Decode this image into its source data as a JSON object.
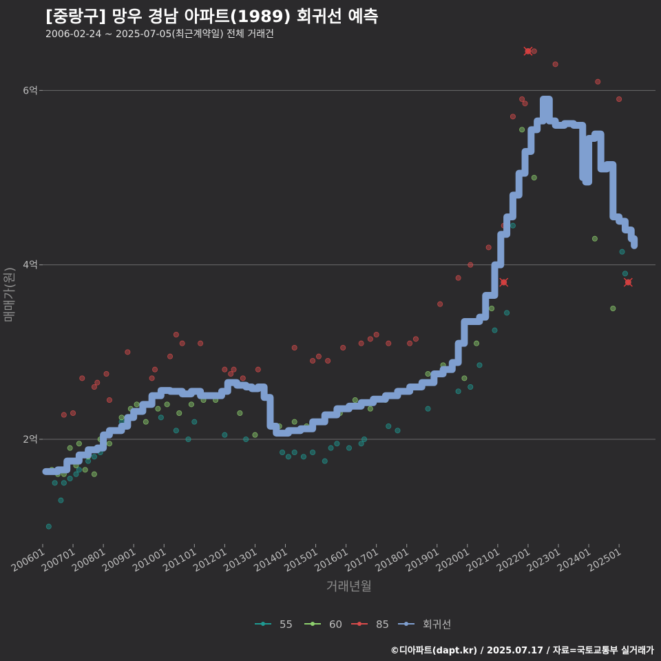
{
  "header": {
    "title": "[중랑구] 망우 경남 아파트(1989) 회귀선 예측",
    "subtitle": "2006-02-24 ~ 2025-07-05(최근계약일) 전체 거래건"
  },
  "footer": {
    "credit": "©디아파트(dapt.kr) / 2025.07.17 / 자료=국토교통부 실거래가"
  },
  "colors": {
    "s55": "#1f9a92",
    "s60": "#8ed16e",
    "s85": "#d94b4b",
    "regression": "#7f9fd0",
    "grid": "#6b6b6b",
    "background": "#2b2a2c"
  },
  "chart_data": {
    "type": "scatter",
    "title": "[중랑구] 망우 경남 아파트(1989) 회귀선 예측",
    "xlabel": "거래년월",
    "ylabel": "매매가(원)",
    "xlim": [
      2006.0,
      2026.2
    ],
    "ylim": [
      0.8,
      6.5
    ],
    "y_unit": "억",
    "x_ticks": [
      {
        "value": 2006,
        "label": "200601"
      },
      {
        "value": 2007,
        "label": "200701"
      },
      {
        "value": 2008,
        "label": "200801"
      },
      {
        "value": 2009,
        "label": "200901"
      },
      {
        "value": 2010,
        "label": "201001"
      },
      {
        "value": 2011,
        "label": "201101"
      },
      {
        "value": 2012,
        "label": "201201"
      },
      {
        "value": 2013,
        "label": "201301"
      },
      {
        "value": 2014,
        "label": "201401"
      },
      {
        "value": 2015,
        "label": "201501"
      },
      {
        "value": 2016,
        "label": "201601"
      },
      {
        "value": 2017,
        "label": "201701"
      },
      {
        "value": 2018,
        "label": "201801"
      },
      {
        "value": 2019,
        "label": "201901"
      },
      {
        "value": 2020,
        "label": "202001"
      },
      {
        "value": 2021,
        "label": "202101"
      },
      {
        "value": 2022,
        "label": "202201"
      },
      {
        "value": 2023,
        "label": "202301"
      },
      {
        "value": 2024,
        "label": "202401"
      },
      {
        "value": 2025,
        "label": "202501"
      }
    ],
    "y_ticks": [
      {
        "value": 2,
        "label": "2억"
      },
      {
        "value": 4,
        "label": "4억"
      },
      {
        "value": 6,
        "label": "6억"
      }
    ],
    "legend": [
      "55",
      "60",
      "85",
      "회귀선"
    ],
    "series": [
      {
        "name": "55",
        "points": [
          [
            2006.2,
            1.0
          ],
          [
            2006.4,
            1.5
          ],
          [
            2006.6,
            1.3
          ],
          [
            2006.7,
            1.5
          ],
          [
            2006.9,
            1.55
          ],
          [
            2007.1,
            1.6
          ],
          [
            2007.2,
            1.65
          ],
          [
            2007.5,
            1.75
          ],
          [
            2007.7,
            1.8
          ],
          [
            2007.9,
            1.85
          ],
          [
            2008.6,
            2.2
          ],
          [
            2009.9,
            2.25
          ],
          [
            2010.4,
            2.1
          ],
          [
            2010.8,
            2.0
          ],
          [
            2011.0,
            2.2
          ],
          [
            2012.0,
            2.05
          ],
          [
            2012.7,
            2.0
          ],
          [
            2013.9,
            1.85
          ],
          [
            2014.1,
            1.8
          ],
          [
            2014.3,
            1.85
          ],
          [
            2014.6,
            1.8
          ],
          [
            2014.9,
            1.85
          ],
          [
            2015.3,
            1.75
          ],
          [
            2015.5,
            1.9
          ],
          [
            2015.7,
            1.95
          ],
          [
            2016.1,
            1.9
          ],
          [
            2016.5,
            1.95
          ],
          [
            2016.6,
            2.0
          ],
          [
            2017.4,
            2.15
          ],
          [
            2017.7,
            2.1
          ],
          [
            2018.7,
            2.35
          ],
          [
            2019.7,
            2.55
          ],
          [
            2020.1,
            2.6
          ],
          [
            2020.4,
            2.85
          ],
          [
            2020.9,
            3.25
          ],
          [
            2021.3,
            3.45
          ],
          [
            2021.5,
            4.45
          ],
          [
            2025.1,
            4.15
          ],
          [
            2025.2,
            3.9
          ]
        ]
      },
      {
        "name": "60",
        "points": [
          [
            2006.3,
            1.65
          ],
          [
            2006.5,
            1.6
          ],
          [
            2006.7,
            1.6
          ],
          [
            2006.9,
            1.9
          ],
          [
            2007.1,
            1.7
          ],
          [
            2007.2,
            1.95
          ],
          [
            2007.4,
            1.65
          ],
          [
            2007.5,
            1.8
          ],
          [
            2007.7,
            1.6
          ],
          [
            2007.9,
            2.0
          ],
          [
            2008.2,
            1.95
          ],
          [
            2008.6,
            2.25
          ],
          [
            2008.9,
            2.35
          ],
          [
            2009.1,
            2.4
          ],
          [
            2009.4,
            2.2
          ],
          [
            2009.6,
            2.4
          ],
          [
            2009.8,
            2.35
          ],
          [
            2010.1,
            2.4
          ],
          [
            2010.5,
            2.3
          ],
          [
            2010.9,
            2.4
          ],
          [
            2011.3,
            2.45
          ],
          [
            2011.7,
            2.45
          ],
          [
            2012.5,
            2.3
          ],
          [
            2013.0,
            2.05
          ],
          [
            2013.8,
            2.15
          ],
          [
            2014.3,
            2.2
          ],
          [
            2014.7,
            2.15
          ],
          [
            2015.3,
            2.2
          ],
          [
            2015.8,
            2.3
          ],
          [
            2016.3,
            2.45
          ],
          [
            2016.8,
            2.35
          ],
          [
            2017.3,
            2.45
          ],
          [
            2017.8,
            2.55
          ],
          [
            2018.2,
            2.6
          ],
          [
            2018.7,
            2.75
          ],
          [
            2019.2,
            2.85
          ],
          [
            2019.9,
            2.7
          ],
          [
            2020.3,
            3.1
          ],
          [
            2020.8,
            3.5
          ],
          [
            2021.1,
            4.15
          ],
          [
            2021.8,
            5.55
          ],
          [
            2022.2,
            5.0
          ],
          [
            2024.2,
            4.3
          ],
          [
            2024.8,
            3.5
          ]
        ]
      },
      {
        "name": "85",
        "points": [
          [
            2006.7,
            2.28
          ],
          [
            2007.0,
            2.3
          ],
          [
            2007.3,
            2.7
          ],
          [
            2007.7,
            2.6
          ],
          [
            2007.8,
            2.65
          ],
          [
            2008.1,
            2.75
          ],
          [
            2008.2,
            2.45
          ],
          [
            2008.8,
            3.0
          ],
          [
            2009.6,
            2.7
          ],
          [
            2009.7,
            2.8
          ],
          [
            2010.2,
            2.95
          ],
          [
            2010.4,
            3.2
          ],
          [
            2010.6,
            3.1
          ],
          [
            2011.2,
            3.1
          ],
          [
            2012.0,
            2.8
          ],
          [
            2012.2,
            2.75
          ],
          [
            2012.3,
            2.8
          ],
          [
            2012.6,
            2.7
          ],
          [
            2013.1,
            2.8
          ],
          [
            2014.3,
            3.05
          ],
          [
            2014.9,
            2.9
          ],
          [
            2015.1,
            2.95
          ],
          [
            2015.4,
            2.9
          ],
          [
            2015.9,
            3.05
          ],
          [
            2016.5,
            3.1
          ],
          [
            2016.8,
            3.15
          ],
          [
            2017.0,
            3.2
          ],
          [
            2017.4,
            3.1
          ],
          [
            2018.1,
            3.1
          ],
          [
            2018.3,
            3.15
          ],
          [
            2019.1,
            3.55
          ],
          [
            2019.7,
            3.85
          ],
          [
            2020.1,
            4.0
          ],
          [
            2020.7,
            4.2
          ],
          [
            2021.2,
            4.45
          ],
          [
            2021.5,
            5.7
          ],
          [
            2021.8,
            5.9
          ],
          [
            2021.9,
            5.85
          ],
          [
            2022.2,
            6.45
          ],
          [
            2022.9,
            6.3
          ],
          [
            2024.3,
            6.1
          ],
          [
            2025.0,
            5.9
          ]
        ]
      }
    ],
    "cancelled_points": [
      [
        2021.2,
        3.8
      ],
      [
        2022.0,
        6.45
      ],
      [
        2025.3,
        3.8
      ]
    ],
    "regression": {
      "name": "회귀선",
      "points": [
        [
          2006.1,
          1.63
        ],
        [
          2006.5,
          1.65
        ],
        [
          2006.8,
          1.75
        ],
        [
          2007.2,
          1.82
        ],
        [
          2007.5,
          1.88
        ],
        [
          2007.8,
          1.9
        ],
        [
          2008.0,
          2.05
        ],
        [
          2008.2,
          2.1
        ],
        [
          2008.6,
          2.15
        ],
        [
          2008.8,
          2.25
        ],
        [
          2009.0,
          2.32
        ],
        [
          2009.3,
          2.4
        ],
        [
          2009.6,
          2.5
        ],
        [
          2009.9,
          2.56
        ],
        [
          2010.2,
          2.55
        ],
        [
          2010.6,
          2.52
        ],
        [
          2010.9,
          2.55
        ],
        [
          2011.2,
          2.5
        ],
        [
          2011.6,
          2.5
        ],
        [
          2011.9,
          2.55
        ],
        [
          2012.1,
          2.65
        ],
        [
          2012.4,
          2.62
        ],
        [
          2012.7,
          2.6
        ],
        [
          2012.9,
          2.58
        ],
        [
          2013.1,
          2.6
        ],
        [
          2013.3,
          2.48
        ],
        [
          2013.5,
          2.15
        ],
        [
          2013.7,
          2.07
        ],
        [
          2014.1,
          2.1
        ],
        [
          2014.5,
          2.12
        ],
        [
          2014.9,
          2.2
        ],
        [
          2015.3,
          2.28
        ],
        [
          2015.7,
          2.35
        ],
        [
          2016.1,
          2.38
        ],
        [
          2016.5,
          2.42
        ],
        [
          2016.9,
          2.46
        ],
        [
          2017.3,
          2.5
        ],
        [
          2017.7,
          2.55
        ],
        [
          2018.1,
          2.6
        ],
        [
          2018.5,
          2.65
        ],
        [
          2018.9,
          2.75
        ],
        [
          2019.2,
          2.8
        ],
        [
          2019.5,
          2.88
        ],
        [
          2019.7,
          3.1
        ],
        [
          2019.9,
          3.35
        ],
        [
          2020.2,
          3.35
        ],
        [
          2020.4,
          3.4
        ],
        [
          2020.6,
          3.65
        ],
        [
          2020.9,
          4.0
        ],
        [
          2021.1,
          4.35
        ],
        [
          2021.3,
          4.55
        ],
        [
          2021.5,
          4.8
        ],
        [
          2021.7,
          5.05
        ],
        [
          2021.9,
          5.3
        ],
        [
          2022.1,
          5.55
        ],
        [
          2022.3,
          5.65
        ],
        [
          2022.5,
          5.9
        ],
        [
          2022.7,
          5.65
        ],
        [
          2022.9,
          5.6
        ],
        [
          2023.2,
          5.62
        ],
        [
          2023.5,
          5.6
        ],
        [
          2023.7,
          5.6
        ],
        [
          2023.8,
          5.0
        ],
        [
          2023.9,
          4.95
        ],
        [
          2024.0,
          5.45
        ],
        [
          2024.2,
          5.5
        ],
        [
          2024.4,
          5.1
        ],
        [
          2024.6,
          5.15
        ],
        [
          2024.8,
          4.55
        ],
        [
          2025.0,
          4.5
        ],
        [
          2025.2,
          4.4
        ],
        [
          2025.4,
          4.3
        ],
        [
          2025.5,
          4.22
        ]
      ]
    }
  }
}
